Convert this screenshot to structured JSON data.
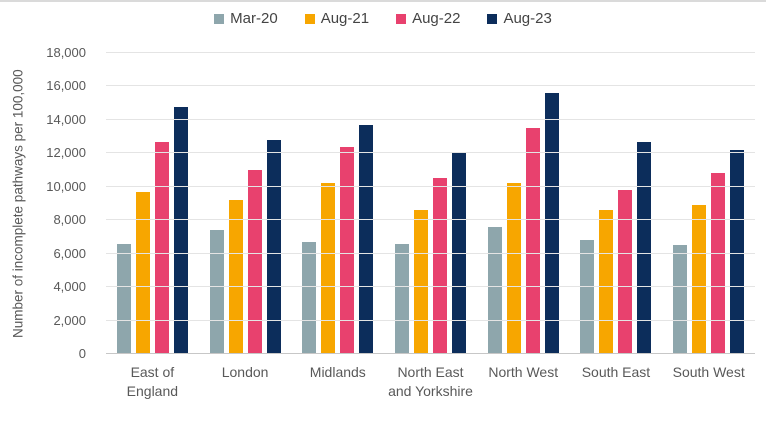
{
  "chart_data": {
    "type": "bar",
    "title": "",
    "xlabel": "",
    "ylabel": "Number of incomplete pathways per 100,000",
    "categories": [
      "East of England",
      "London",
      "Midlands",
      "North East and Yorkshire",
      "North West",
      "South East",
      "South West"
    ],
    "series": [
      {
        "name": "Mar-20",
        "color": "#8ea6ac",
        "values": [
          6600,
          7400,
          6700,
          6600,
          7600,
          6800,
          6500
        ]
      },
      {
        "name": "Aug-21",
        "color": "#f7a600",
        "values": [
          9700,
          9200,
          10200,
          8600,
          10200,
          8600,
          8900
        ]
      },
      {
        "name": "Aug-22",
        "color": "#e8416e",
        "values": [
          12700,
          11000,
          12400,
          10500,
          13500,
          9800,
          10800
        ]
      },
      {
        "name": "Aug-23",
        "color": "#0c2d5b",
        "values": [
          14800,
          12800,
          13700,
          12100,
          15600,
          12700,
          12200
        ]
      }
    ],
    "ylim": [
      0,
      18000
    ],
    "ytick_step": 2000,
    "yticks": [
      {
        "value": 0,
        "label": "0"
      },
      {
        "value": 2000,
        "label": "2,000"
      },
      {
        "value": 4000,
        "label": "4,000"
      },
      {
        "value": 6000,
        "label": "6,000"
      },
      {
        "value": 8000,
        "label": "8,000"
      },
      {
        "value": 10000,
        "label": "10,000"
      },
      {
        "value": 12000,
        "label": "12,000"
      },
      {
        "value": 14000,
        "label": "14,000"
      },
      {
        "value": 16000,
        "label": "16,000"
      },
      {
        "value": 18000,
        "label": "18,000"
      }
    ],
    "grid": "horizontal",
    "legend_position": "top"
  }
}
